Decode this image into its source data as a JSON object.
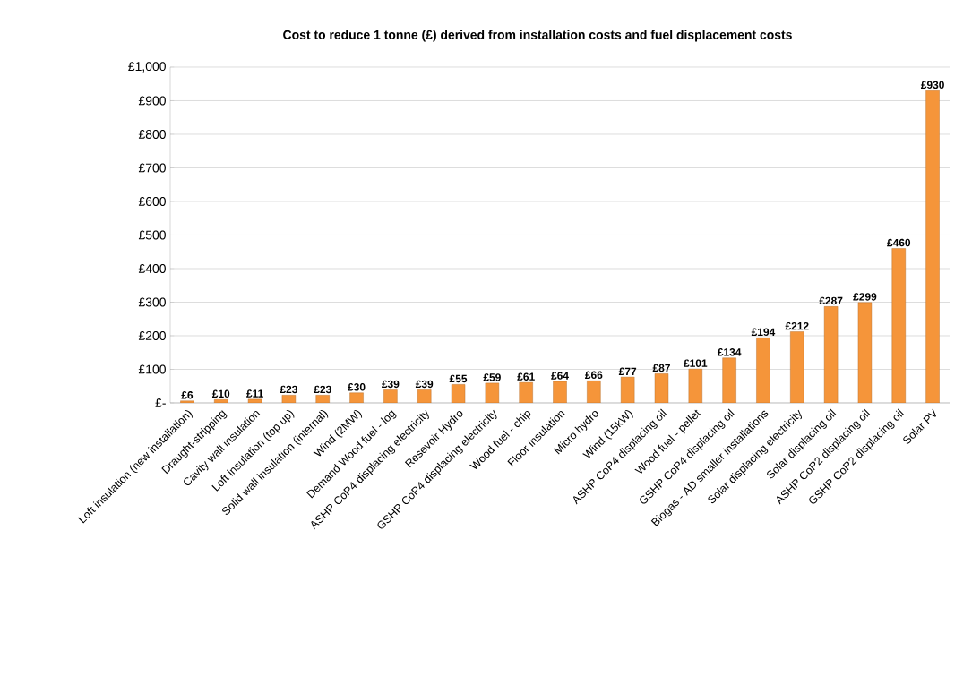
{
  "chart_data": {
    "type": "bar",
    "title": "Cost to reduce 1 tonne  (£) derived from installation costs and fuel displacement costs",
    "categories": [
      "Loft insulation (new installation)",
      "Draught-stripping",
      "Cavity wall insulation",
      "Loft insulation (top up)",
      "Solid wall insulation (internal)",
      "Wind (2MW)",
      "Demand Wood fuel - log",
      "ASHP CoP4 displacing electricity",
      "Resevoir Hydro",
      "GSHP CoP4 displacing electricity",
      "Wood fuel - chip",
      "Floor insulation",
      "Micro hydro",
      "Wind (15kW)",
      "ASHP CoP4 displacing oil",
      "Wood fuel  - pellet",
      "GSHP CoP4 displacing oil",
      "Biogas - AD smaller installations",
      "Solar  displacing electricity",
      "Solar  displacing oil",
      "ASHP CoP2 displacing oil",
      "GSHP CoP2 displacing oil",
      "Solar PV"
    ],
    "values": [
      6,
      10,
      11,
      23,
      23,
      30,
      39,
      39,
      55,
      59,
      61,
      64,
      66,
      77,
      87,
      101,
      134,
      194,
      212,
      287,
      299,
      460,
      930
    ],
    "value_labels": [
      "£6",
      "£10",
      "£11",
      "£23",
      "£23",
      "£30",
      "£39",
      "£39",
      "£55",
      "£59",
      "£61",
      "£64",
      "£66",
      "£77",
      "£87",
      "£101",
      "£134",
      "£194",
      "£212",
      "£287",
      "£299",
      "£460",
      "£930"
    ],
    "color": "#f5953a",
    "ylim": [
      0,
      1000
    ],
    "yticks": [
      {
        "value": 0,
        "label": "£-"
      },
      {
        "value": 100,
        "label": "£100"
      },
      {
        "value": 200,
        "label": "£200"
      },
      {
        "value": 300,
        "label": "£300"
      },
      {
        "value": 400,
        "label": "£400"
      },
      {
        "value": 500,
        "label": "£500"
      },
      {
        "value": 600,
        "label": "£600"
      },
      {
        "value": 700,
        "label": "£700"
      },
      {
        "value": 800,
        "label": "£800"
      },
      {
        "value": 900,
        "label": "£900"
      },
      {
        "value": 1000,
        "label": "£1,000"
      }
    ],
    "grid": "y"
  }
}
